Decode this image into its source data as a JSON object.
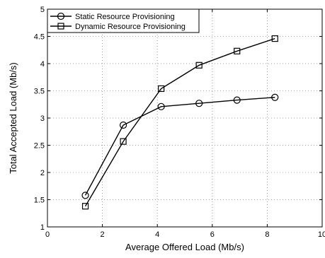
{
  "chart_data": {
    "type": "line",
    "title": "",
    "xlabel": "Average Offered Load (Mb/s)",
    "ylabel": "Total Accepted Load (Mb/s)",
    "xlim": [
      0,
      10
    ],
    "ylim": [
      1,
      5
    ],
    "xticks": [
      0,
      2,
      4,
      6,
      8,
      10
    ],
    "yticks": [
      1,
      1.5,
      2,
      2.5,
      3,
      3.5,
      4,
      4.5,
      5
    ],
    "xtick_labels": [
      "0",
      "2",
      "4",
      "6",
      "8",
      "10"
    ],
    "ytick_labels": [
      "1",
      "1.5",
      "2",
      "2.5",
      "3",
      "3.5",
      "4",
      "4.5",
      "5"
    ],
    "grid": true,
    "legend_position": "top-left",
    "series": [
      {
        "name": "Static Resource Provisioning",
        "marker": "circle",
        "x": [
          1.38,
          2.76,
          4.14,
          5.52,
          6.9,
          8.28
        ],
        "y": [
          1.58,
          2.87,
          3.21,
          3.27,
          3.33,
          3.38
        ]
      },
      {
        "name": "Dynamic Resource Provisioning",
        "marker": "square",
        "x": [
          1.38,
          2.76,
          4.14,
          5.52,
          6.9,
          8.28
        ],
        "y": [
          1.38,
          2.57,
          3.54,
          3.97,
          4.23,
          4.46
        ]
      }
    ]
  }
}
